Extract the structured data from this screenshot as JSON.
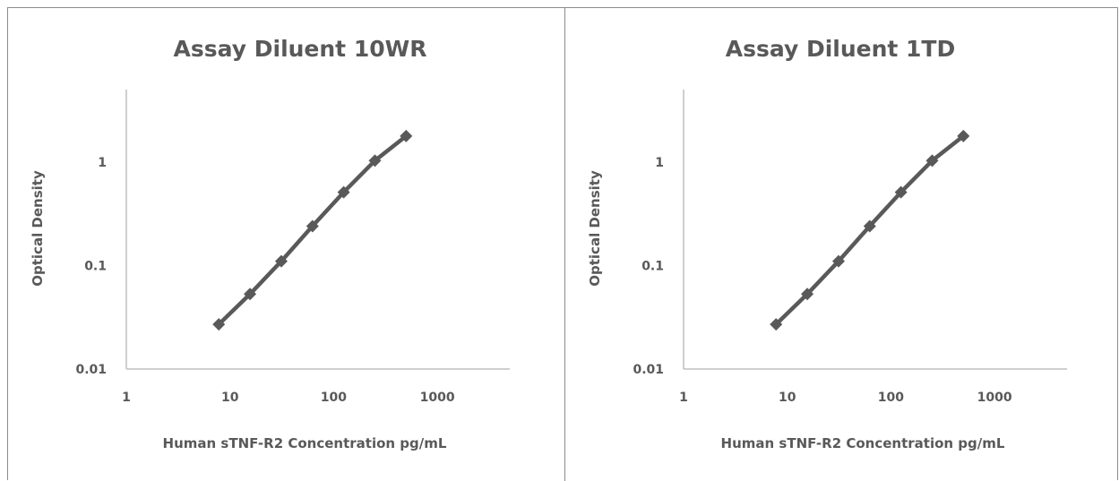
{
  "colors": {
    "line": "#595959",
    "axis": "#bfbfbf",
    "text": "#595959"
  },
  "chart_data": [
    {
      "type": "line",
      "title": "Assay Diluent 10WR",
      "xlabel": "Human sTNF-R2 Concentration pg/mL",
      "ylabel": "Optical Density",
      "x_scale": "log",
      "y_scale": "log",
      "xlim": [
        1,
        5000
      ],
      "ylim": [
        0.01,
        5
      ],
      "x_ticks": [
        "1",
        "10",
        "100",
        "1000"
      ],
      "y_ticks": [
        "0.01",
        "0.1",
        "1"
      ],
      "grid": false,
      "series": [
        {
          "x": [
            7.8,
            15.6,
            31.25,
            62.5,
            125,
            250,
            500
          ],
          "y": [
            0.027,
            0.053,
            0.11,
            0.24,
            0.51,
            1.03,
            1.78
          ]
        }
      ]
    },
    {
      "type": "line",
      "title": "Assay Diluent 1TD",
      "xlabel": "Human sTNF-R2 Concentration pg/mL",
      "ylabel": "Optical Density",
      "x_scale": "log",
      "y_scale": "log",
      "xlim": [
        1,
        5000
      ],
      "ylim": [
        0.01,
        5
      ],
      "x_ticks": [
        "1",
        "10",
        "100",
        "1000"
      ],
      "y_ticks": [
        "0.01",
        "0.1",
        "1"
      ],
      "grid": false,
      "series": [
        {
          "x": [
            7.8,
            15.6,
            31.25,
            62.5,
            125,
            250,
            500
          ],
          "y": [
            0.027,
            0.053,
            0.11,
            0.24,
            0.51,
            1.03,
            1.78
          ]
        }
      ]
    }
  ]
}
